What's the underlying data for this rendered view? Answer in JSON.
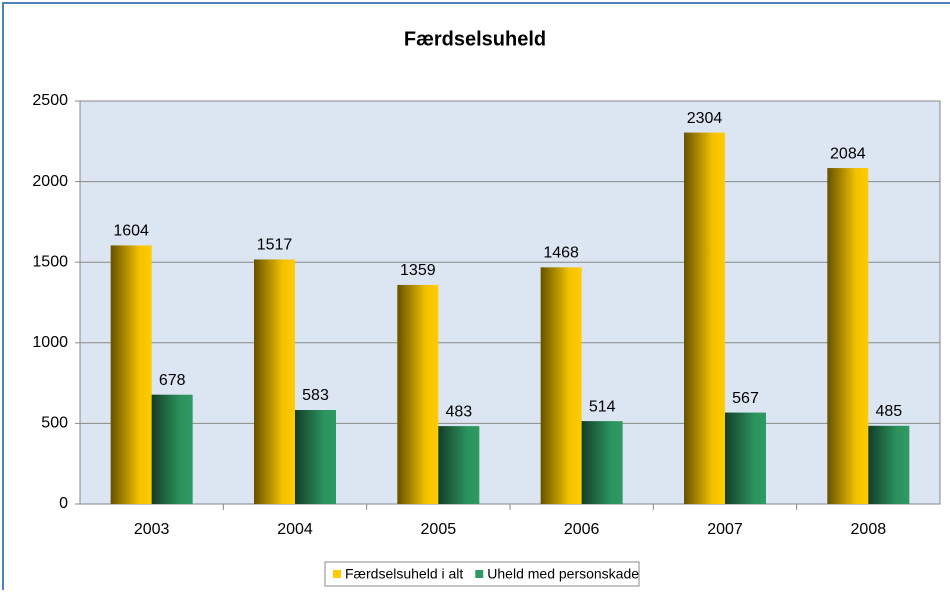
{
  "chart_data": {
    "type": "bar",
    "title": "Færdselsuheld",
    "categories": [
      "2003",
      "2004",
      "2005",
      "2006",
      "2007",
      "2008"
    ],
    "series": [
      {
        "name": "Færdselsuheld i alt",
        "color": "#ffcc00",
        "values": [
          1604,
          1517,
          1359,
          1468,
          2304,
          2084
        ]
      },
      {
        "name": "Uheld med personskade",
        "color": "#2e9a62",
        "values": [
          678,
          583,
          483,
          514,
          567,
          485
        ]
      }
    ],
    "ylim": [
      0,
      2500
    ],
    "yticks": [
      0,
      500,
      1000,
      1500,
      2000,
      2500
    ],
    "grid": true,
    "legend": "bottom"
  }
}
